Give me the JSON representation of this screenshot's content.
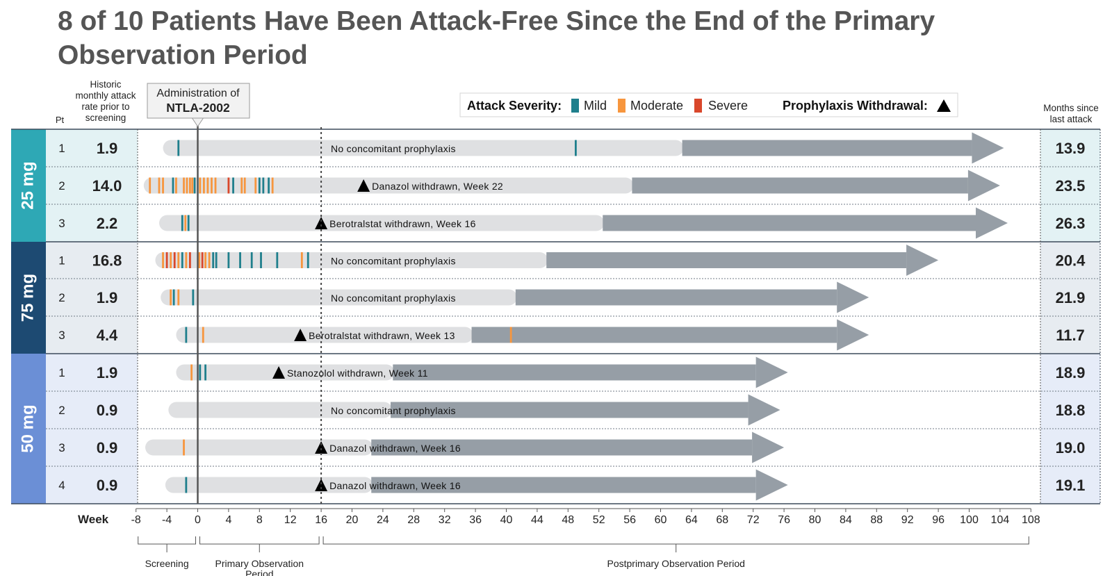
{
  "title": "8 of 10 Patients Have Been Attack-Free Since the End of the Primary Observation Period",
  "headers": {
    "pt": "Pt",
    "historic_rate": [
      "Historic",
      "monthly attack",
      "rate prior to",
      "screening"
    ],
    "months_since": [
      "Months since",
      "last attack"
    ],
    "administration": [
      "Administration of",
      "NTLA-2002"
    ]
  },
  "legend": {
    "severity_label": "Attack Severity:",
    "mild": "Mild",
    "moderate": "Moderate",
    "severe": "Severe",
    "withdrawal_label": "Prophylaxis Withdrawal:"
  },
  "colors": {
    "mild": "#1f7f8c",
    "moderate": "#f7963e",
    "severe": "#d9472b",
    "bar_light": "#dfe0e2",
    "bar_dark": "#969ea6",
    "dose_25": "#2ea8b5",
    "dose_75": "#1d4a72",
    "dose_50": "#6b8fd6",
    "row_25": "#e3f2f4",
    "row_75": "#e7ecf1",
    "row_50": "#e6ecf8",
    "title": "#555555"
  },
  "chart_data": {
    "type": "swimlane",
    "x_axis": {
      "label": "Week",
      "ticks": [
        -8,
        -4,
        0,
        4,
        8,
        12,
        16,
        20,
        24,
        28,
        32,
        36,
        40,
        44,
        48,
        52,
        56,
        60,
        64,
        68,
        72,
        76,
        80,
        84,
        88,
        92,
        96,
        100,
        104,
        108
      ],
      "range": [
        -8,
        108
      ]
    },
    "periods": [
      {
        "label": "Screening",
        "start": -8,
        "end": 0
      },
      {
        "label": "Primary Observation Period",
        "start": 0,
        "end": 16
      },
      {
        "label": "Postprimary Observation Period",
        "start": 16,
        "end": 108
      }
    ],
    "reference_lines": [
      {
        "week": 0,
        "style": "solid"
      },
      {
        "week": 16,
        "style": "dotted"
      }
    ],
    "groups": [
      {
        "dose": "25 mg",
        "patients": [
          {
            "pt": "1",
            "historic_rate": "1.9",
            "months_since": "13.9",
            "start": -4.5,
            "dark_start": 62.8,
            "end": 104.5,
            "note": "No concomitant prophylaxis",
            "withdrawal_week": null,
            "attacks": [
              {
                "w": -2.5,
                "s": "mild"
              },
              {
                "w": 49,
                "s": "mild"
              }
            ]
          },
          {
            "pt": "2",
            "historic_rate": "14.0",
            "months_since": "23.5",
            "start": -7,
            "dark_start": 56.3,
            "end": 104,
            "note": "Danazol withdrawn, Week 22",
            "withdrawal_week": 21.5,
            "attacks": [
              {
                "w": -6.2,
                "s": "moderate"
              },
              {
                "w": -5,
                "s": "moderate"
              },
              {
                "w": -4.5,
                "s": "moderate"
              },
              {
                "w": -3.2,
                "s": "mild"
              },
              {
                "w": -2.8,
                "s": "moderate"
              },
              {
                "w": -1.8,
                "s": "moderate"
              },
              {
                "w": -1.4,
                "s": "moderate"
              },
              {
                "w": -1,
                "s": "moderate"
              },
              {
                "w": -0.7,
                "s": "moderate"
              },
              {
                "w": -0.4,
                "s": "mild"
              },
              {
                "w": 0.3,
                "s": "moderate"
              },
              {
                "w": 0.8,
                "s": "moderate"
              },
              {
                "w": 1.3,
                "s": "moderate"
              },
              {
                "w": 1.8,
                "s": "moderate"
              },
              {
                "w": 2.3,
                "s": "moderate"
              },
              {
                "w": 4,
                "s": "severe"
              },
              {
                "w": 4.6,
                "s": "mild"
              },
              {
                "w": 5.7,
                "s": "moderate"
              },
              {
                "w": 6.1,
                "s": "moderate"
              },
              {
                "w": 7.5,
                "s": "moderate"
              },
              {
                "w": 8,
                "s": "mild"
              },
              {
                "w": 8.5,
                "s": "mild"
              },
              {
                "w": 9.2,
                "s": "mild"
              },
              {
                "w": 9.7,
                "s": "moderate"
              }
            ]
          },
          {
            "pt": "3",
            "historic_rate": "2.2",
            "months_since": "26.3",
            "start": -5,
            "dark_start": 52.5,
            "end": 105,
            "note": "Berotralstat withdrawn, Week 16",
            "withdrawal_week": 16,
            "attacks": [
              {
                "w": -2,
                "s": "mild"
              },
              {
                "w": -1.6,
                "s": "moderate"
              },
              {
                "w": -1.2,
                "s": "mild"
              }
            ]
          }
        ]
      },
      {
        "dose": "75 mg",
        "patients": [
          {
            "pt": "1",
            "historic_rate": "16.8",
            "months_since": "20.4",
            "start": -5.5,
            "dark_start": 45.2,
            "end": 96,
            "note": "No concomitant prophylaxis",
            "withdrawal_week": null,
            "attacks": [
              {
                "w": -4.5,
                "s": "moderate"
              },
              {
                "w": -4,
                "s": "severe"
              },
              {
                "w": -3.5,
                "s": "moderate"
              },
              {
                "w": -3,
                "s": "severe"
              },
              {
                "w": -2.5,
                "s": "moderate"
              },
              {
                "w": -2,
                "s": "mild"
              },
              {
                "w": -1.5,
                "s": "moderate"
              },
              {
                "w": -1,
                "s": "severe"
              },
              {
                "w": 0.2,
                "s": "moderate"
              },
              {
                "w": 0.6,
                "s": "severe"
              },
              {
                "w": 1,
                "s": "moderate"
              },
              {
                "w": 1.5,
                "s": "moderate"
              },
              {
                "w": 2,
                "s": "mild"
              },
              {
                "w": 2.4,
                "s": "mild"
              },
              {
                "w": 4,
                "s": "mild"
              },
              {
                "w": 5.5,
                "s": "mild"
              },
              {
                "w": 7,
                "s": "mild"
              },
              {
                "w": 8.2,
                "s": "mild"
              },
              {
                "w": 10.3,
                "s": "mild"
              },
              {
                "w": 13.5,
                "s": "moderate"
              },
              {
                "w": 14.3,
                "s": "mild"
              }
            ]
          },
          {
            "pt": "2",
            "historic_rate": "1.9",
            "months_since": "21.9",
            "start": -4.8,
            "dark_start": 41.2,
            "end": 87,
            "note": "No concomitant prophylaxis",
            "withdrawal_week": null,
            "attacks": [
              {
                "w": -3.5,
                "s": "moderate"
              },
              {
                "w": -3.1,
                "s": "mild"
              },
              {
                "w": -2.5,
                "s": "moderate"
              },
              {
                "w": -0.6,
                "s": "mild"
              }
            ]
          },
          {
            "pt": "3",
            "historic_rate": "4.4",
            "months_since": "11.7",
            "start": -2.8,
            "dark_start": 35.5,
            "end": 87,
            "note": "Berotralstat withdrawn, Week 13",
            "withdrawal_week": 13.3,
            "attacks": [
              {
                "w": -1.5,
                "s": "mild"
              },
              {
                "w": 0.7,
                "s": "moderate"
              },
              {
                "w": 40.6,
                "s": "moderate"
              }
            ]
          }
        ]
      },
      {
        "dose": "50 mg",
        "patients": [
          {
            "pt": "1",
            "historic_rate": "1.9",
            "months_since": "18.9",
            "start": -2.8,
            "dark_start": 25.3,
            "end": 76.5,
            "note": "Stanozolol withdrawn, Week 11",
            "withdrawal_week": 10.5,
            "attacks": [
              {
                "w": -0.8,
                "s": "moderate"
              },
              {
                "w": 0.3,
                "s": "mild"
              },
              {
                "w": 1,
                "s": "mild"
              }
            ]
          },
          {
            "pt": "2",
            "historic_rate": "0.9",
            "months_since": "18.8",
            "start": -3.8,
            "dark_start": 25,
            "end": 75.5,
            "note": "No concomitant prophylaxis",
            "withdrawal_week": null,
            "attacks": []
          },
          {
            "pt": "3",
            "historic_rate": "0.9",
            "months_since": "19.0",
            "start": -6.8,
            "dark_start": 22.5,
            "end": 76,
            "note": "Danazol withdrawn, Week 16",
            "withdrawal_week": 16,
            "attacks": [
              {
                "w": -1.8,
                "s": "moderate"
              }
            ]
          },
          {
            "pt": "4",
            "historic_rate": "0.9",
            "months_since": "19.1",
            "start": -4.2,
            "dark_start": 22.5,
            "end": 76.5,
            "note": "Danazol withdrawn, Week 16",
            "withdrawal_week": 16,
            "attacks": [
              {
                "w": -1.5,
                "s": "mild"
              }
            ]
          }
        ]
      }
    ]
  }
}
